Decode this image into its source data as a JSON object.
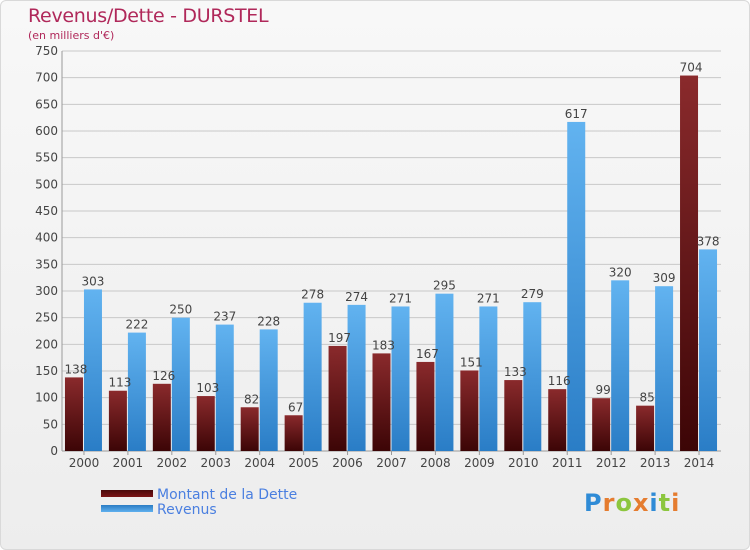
{
  "title": "Revenus/Dette - DURSTEL",
  "subtitle": "(en milliers d'€)",
  "brand": {
    "text": "Proxiti",
    "letters": [
      {
        "ch": "P",
        "color": "#2f8bd6"
      },
      {
        "ch": "r",
        "color": "#e57c2f"
      },
      {
        "ch": "o",
        "color": "#8cc63e"
      },
      {
        "ch": "x",
        "color": "#e57c2f"
      },
      {
        "ch": "i",
        "color": "#2f8bd6"
      },
      {
        "ch": "t",
        "color": "#8cc63e"
      },
      {
        "ch": "i",
        "color": "#e57c2f"
      }
    ]
  },
  "colors": {
    "debt": "#7b1416",
    "revenue": "#3a97e0",
    "grid": "#c8c8c8",
    "label": "#444444",
    "legend_text": "#4a7fe0"
  },
  "chart_data": {
    "type": "bar",
    "title": "Revenus/Dette - DURSTEL",
    "subtitle": "(en milliers d'€)",
    "xlabel": "",
    "ylabel": "",
    "ylim": [
      0,
      750
    ],
    "ytick_step": 50,
    "grid": true,
    "legend_position": "bottom-left",
    "categories": [
      "2000",
      "2001",
      "2002",
      "2003",
      "2004",
      "2005",
      "2006",
      "2007",
      "2008",
      "2009",
      "2010",
      "2011",
      "2012",
      "2013",
      "2014"
    ],
    "series": [
      {
        "name": "Montant de la Dette",
        "key": "debt",
        "values": [
          138,
          113,
          126,
          103,
          82,
          67,
          197,
          183,
          167,
          151,
          133,
          116,
          99,
          85,
          704
        ]
      },
      {
        "name": "Revenus",
        "key": "revenue",
        "values": [
          303,
          222,
          250,
          237,
          228,
          278,
          274,
          271,
          295,
          271,
          279,
          617,
          320,
          309,
          378
        ]
      }
    ]
  }
}
